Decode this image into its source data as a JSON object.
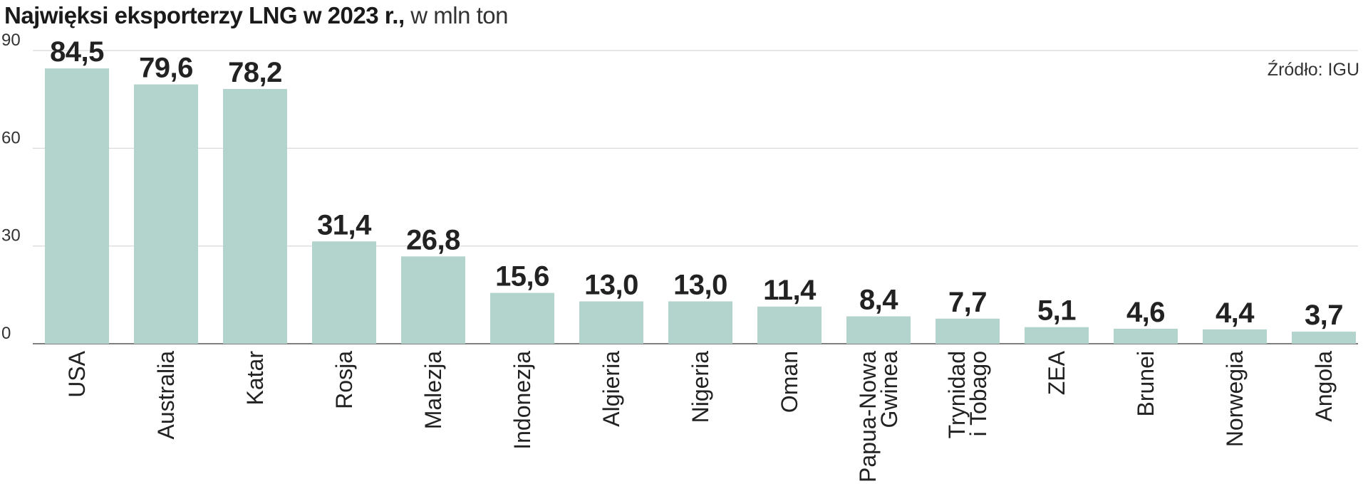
{
  "chart_data": {
    "type": "bar",
    "title": "Najwięksi eksporterzy LNG w 2023 r.,",
    "subtitle": "w mln ton",
    "source": "Źródło: IGU",
    "categories": [
      [
        "USA"
      ],
      [
        "Australia"
      ],
      [
        "Katar"
      ],
      [
        "Rosja"
      ],
      [
        "Malezja"
      ],
      [
        "Indonezja"
      ],
      [
        "Algieria"
      ],
      [
        "Nigeria"
      ],
      [
        "Oman"
      ],
      [
        "Papua-Nowa",
        "Gwinea"
      ],
      [
        "Trynidad",
        "i Tobago"
      ],
      [
        "ZEA"
      ],
      [
        "Brunei"
      ],
      [
        "Norwegia"
      ],
      [
        "Angola"
      ]
    ],
    "values": [
      84.5,
      79.6,
      78.2,
      31.4,
      26.8,
      15.6,
      13.0,
      13.0,
      11.4,
      8.4,
      7.7,
      5.1,
      4.6,
      4.4,
      3.7
    ],
    "value_labels": [
      "84,5",
      "79,6",
      "78,2",
      "31,4",
      "26,8",
      "15,6",
      "13,0",
      "13,0",
      "11,4",
      "8,4",
      "7,7",
      "5,1",
      "4,6",
      "4,4",
      "3,7"
    ],
    "yticks": [
      0,
      30,
      60,
      90
    ],
    "ylim": [
      0,
      90
    ],
    "xlabel": "",
    "ylabel": "",
    "grid": true,
    "legend": "none",
    "colors": {
      "bar": "#b3d3cd",
      "grid": "#d6d6d6",
      "axis": "#555555",
      "text": "#222222"
    }
  }
}
